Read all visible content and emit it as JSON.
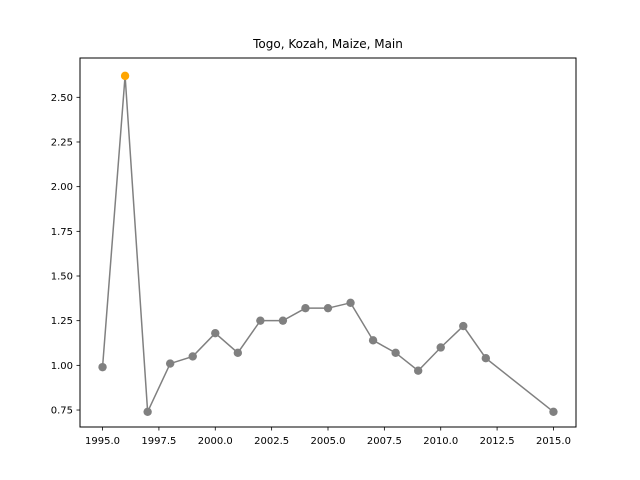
{
  "chart_data": {
    "type": "line",
    "title": "Togo, Kozah, Maize, Main",
    "xlabel": "",
    "ylabel": "",
    "xlim": [
      1994.0,
      2016.0
    ],
    "ylim": [
      0.655,
      2.72
    ],
    "x_ticks": [
      1995.0,
      1997.5,
      2000.0,
      2002.5,
      2005.0,
      2007.5,
      2010.0,
      2012.5,
      2015.0
    ],
    "x_tick_labels": [
      "1995.0",
      "1997.5",
      "2000.0",
      "2002.5",
      "2005.0",
      "2007.5",
      "2010.0",
      "2012.5",
      "2015.0"
    ],
    "y_ticks": [
      0.75,
      1.0,
      1.25,
      1.5,
      1.75,
      2.0,
      2.25,
      2.5
    ],
    "y_tick_labels": [
      "0.75",
      "1.00",
      "1.25",
      "1.50",
      "1.75",
      "2.00",
      "2.25",
      "2.50"
    ],
    "grid": false,
    "line_color": "#808080",
    "highlight_color": "#FFA500",
    "series": [
      {
        "x": [
          1995,
          1996,
          1997,
          1998,
          1999,
          2000,
          2001,
          2002,
          2003,
          2004,
          2005,
          2006,
          2007,
          2008,
          2009,
          2010,
          2011,
          2012,
          2015
        ],
        "y": [
          0.99,
          2.62,
          0.74,
          1.01,
          1.05,
          1.18,
          1.07,
          1.25,
          1.25,
          1.32,
          1.32,
          1.35,
          1.14,
          1.07,
          0.97,
          1.1,
          1.22,
          1.04,
          0.74
        ],
        "highlight_index": 1
      }
    ]
  }
}
